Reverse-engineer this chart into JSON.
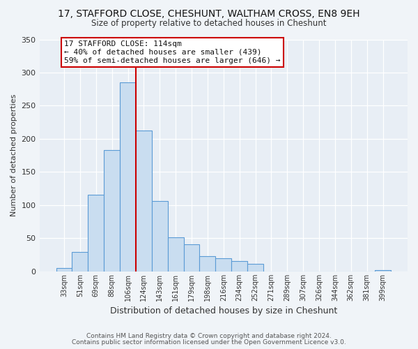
{
  "title": "17, STAFFORD CLOSE, CHESHUNT, WALTHAM CROSS, EN8 9EH",
  "subtitle": "Size of property relative to detached houses in Cheshunt",
  "xlabel": "Distribution of detached houses by size in Cheshunt",
  "ylabel": "Number of detached properties",
  "bar_labels": [
    "33sqm",
    "51sqm",
    "69sqm",
    "88sqm",
    "106sqm",
    "124sqm",
    "143sqm",
    "161sqm",
    "179sqm",
    "198sqm",
    "216sqm",
    "234sqm",
    "252sqm",
    "271sqm",
    "289sqm",
    "307sqm",
    "326sqm",
    "344sqm",
    "362sqm",
    "381sqm",
    "399sqm"
  ],
  "bar_values": [
    5,
    29,
    116,
    183,
    285,
    213,
    106,
    51,
    41,
    23,
    20,
    16,
    11,
    0,
    0,
    0,
    0,
    0,
    0,
    0,
    2
  ],
  "bar_color": "#c9ddf0",
  "bar_edge_color": "#5b9bd5",
  "vline_x": 4.5,
  "vline_color": "#cc0000",
  "annotation_title": "17 STAFFORD CLOSE: 114sqm",
  "annotation_line1": "← 40% of detached houses are smaller (439)",
  "annotation_line2": "59% of semi-detached houses are larger (646) →",
  "annotation_box_facecolor": "#ffffff",
  "annotation_box_edgecolor": "#cc0000",
  "ylim": [
    0,
    350
  ],
  "yticks": [
    0,
    50,
    100,
    150,
    200,
    250,
    300,
    350
  ],
  "footer1": "Contains HM Land Registry data © Crown copyright and database right 2024.",
  "footer2": "Contains public sector information licensed under the Open Government Licence v3.0.",
  "bg_color": "#f0f4f8",
  "plot_bg_color": "#e8eef5"
}
